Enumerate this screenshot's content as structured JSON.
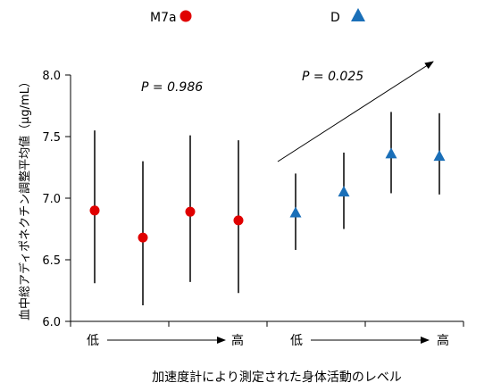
{
  "chart_data": {
    "type": "scatter",
    "ylabel": "血中総アディポネクチン調整平均値（μg/mL）",
    "xlabel": "加速度計により測定された身体活動のレベル",
    "ylim": [
      6.0,
      8.0
    ],
    "yticks": [
      "6.0",
      "6.5",
      "7.0",
      "7.5",
      "8.0"
    ],
    "legend": [
      {
        "label": "M7a",
        "marker": "circle",
        "color": "#e00000"
      },
      {
        "label": "D",
        "marker": "triangle",
        "color": "#1a6fb8"
      }
    ],
    "series": [
      {
        "name": "M7a",
        "marker": "circle",
        "color": "#e00000",
        "points": [
          {
            "y": 6.9,
            "low": 6.31,
            "high": 7.55
          },
          {
            "y": 6.68,
            "low": 6.13,
            "high": 7.3
          },
          {
            "y": 6.89,
            "low": 6.32,
            "high": 7.51
          },
          {
            "y": 6.82,
            "low": 6.23,
            "high": 7.47
          }
        ],
        "p_label": "P = 0.986",
        "axis_low": "低",
        "axis_high": "高"
      },
      {
        "name": "D",
        "marker": "triangle",
        "color": "#1a6fb8",
        "points": [
          {
            "y": 6.88,
            "low": 6.58,
            "high": 7.2
          },
          {
            "y": 7.05,
            "low": 6.75,
            "high": 7.37
          },
          {
            "y": 7.36,
            "low": 7.04,
            "high": 7.7
          },
          {
            "y": 7.34,
            "low": 7.03,
            "high": 7.69
          }
        ],
        "p_label": "P = 0.025",
        "axis_low": "低",
        "axis_high": "高"
      }
    ]
  }
}
